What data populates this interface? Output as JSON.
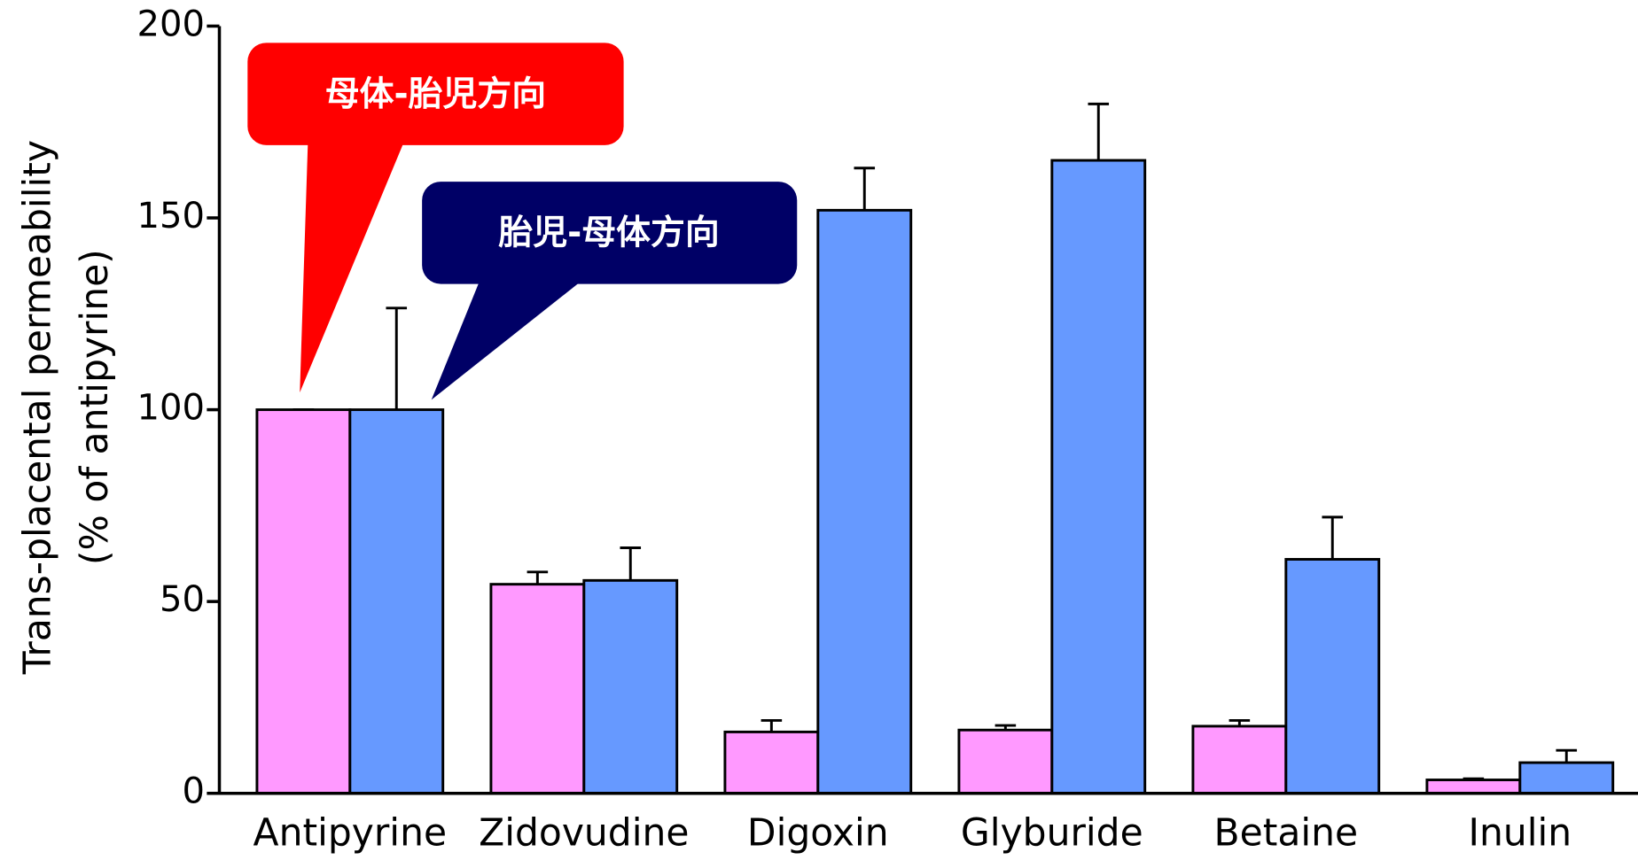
{
  "chart_data": {
    "type": "bar",
    "ylabel": [
      "Trans-placental permeability",
      "(% of antipyrine)"
    ],
    "categories": [
      "Antipyrine",
      "Zidovudine",
      "Digoxin",
      "Glyburide",
      "Betaine",
      "Inulin"
    ],
    "series": [
      {
        "name": "母体-胎児方向",
        "color": "#ff99ff",
        "values": [
          100,
          54.5,
          16,
          16.5,
          17.5,
          3.5
        ],
        "errors": [
          0,
          3.2,
          3,
          1.2,
          1.5,
          0.3
        ]
      },
      {
        "name": "胎児-母体方向",
        "color": "#6699ff",
        "values": [
          100,
          55.5,
          152,
          165,
          61,
          8
        ],
        "errors": [
          26.5,
          8.5,
          11,
          14.7,
          11,
          3.2
        ]
      }
    ],
    "ylim": [
      0,
      200
    ],
    "yticks": [
      0,
      50,
      100,
      150,
      200
    ]
  }
}
